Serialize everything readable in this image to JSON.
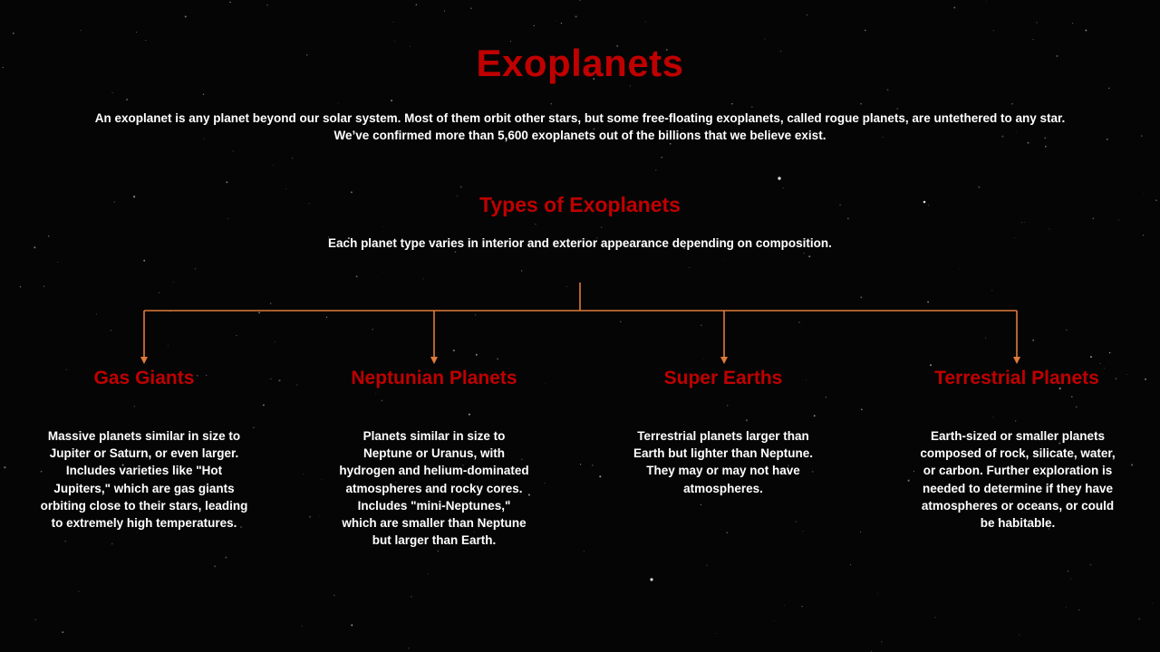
{
  "header": {
    "title": "Exoplanets",
    "intro": "An exoplanet is any planet beyond our solar system. Most of them orbit other stars, but some free-floating exoplanets, called rogue planets, are untethered to any star. We’ve confirmed more than 5,600 exoplanets out of the billions that we believe exist."
  },
  "section": {
    "title": "Types of Exoplanets",
    "description": "Each planet type varies in interior and exterior appearance depending on composition."
  },
  "planet_types": [
    {
      "name": "Gas Giants",
      "description": "Massive planets similar in size to Jupiter or Saturn, or even larger. Includes varieties like \"Hot Jupiters,\" which are gas giants orbiting close to their stars, leading to extremely high temperatures."
    },
    {
      "name": "Neptunian Planets",
      "description": "Planets similar in size to Neptune or Uranus, with hydrogen and helium-dominated atmospheres and rocky cores. Includes \"mini-Neptunes,\" which are smaller than Neptune but larger than Earth."
    },
    {
      "name": "Super Earths",
      "description": "Terrestrial planets larger than Earth but lighter than Neptune. They may or may not have atmospheres."
    },
    {
      "name": "Terrestrial Planets",
      "description": "Earth-sized or smaller planets composed of rock, silicate, water, or carbon. Further exploration is needed to determine if they have atmospheres or oceans, or could be habitable."
    }
  ],
  "colors": {
    "heading": "#c00000",
    "connector": "#e07b39",
    "text": "#ffffff",
    "background": "#050505"
  }
}
